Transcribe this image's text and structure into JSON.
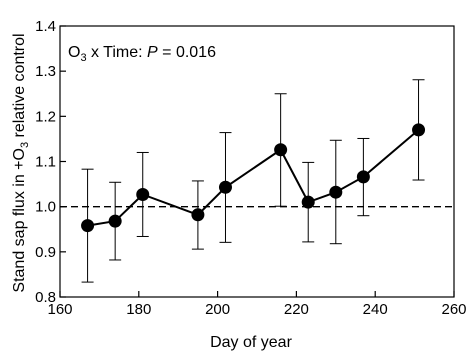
{
  "chart_data": {
    "type": "scatter",
    "title": "",
    "xlabel": "Day of year",
    "ylabel_main": "Stand sap flux in +O",
    "ylabel_sub": "3",
    "ylabel_rest": " relative control",
    "xlim": [
      160,
      260
    ],
    "ylim": [
      0.8,
      1.4
    ],
    "x_ticks": [
      160,
      180,
      200,
      220,
      240,
      260
    ],
    "y_ticks": [
      0.8,
      0.9,
      1.0,
      1.1,
      1.2,
      1.3,
      1.4
    ],
    "reference_line": {
      "y": 1.0,
      "style": "dashed"
    },
    "annotation": {
      "prefix": "O",
      "sub": "3",
      "middle": " x Time: ",
      "italic": "P",
      "suffix": " = 0.016"
    },
    "series": [
      {
        "x": [
          167,
          174,
          181,
          195,
          202,
          216,
          223,
          230,
          237,
          251
        ],
        "y": [
          0.958,
          0.968,
          1.027,
          0.982,
          1.043,
          1.126,
          1.01,
          1.032,
          1.066,
          1.17
        ],
        "err_low": [
          0.833,
          0.882,
          0.934,
          0.906,
          0.921,
          1.001,
          0.922,
          0.918,
          0.98,
          1.059
        ],
        "err_high": [
          1.083,
          1.054,
          1.12,
          1.057,
          1.164,
          1.25,
          1.098,
          1.147,
          1.151,
          1.281
        ],
        "color": "#000000"
      }
    ]
  }
}
